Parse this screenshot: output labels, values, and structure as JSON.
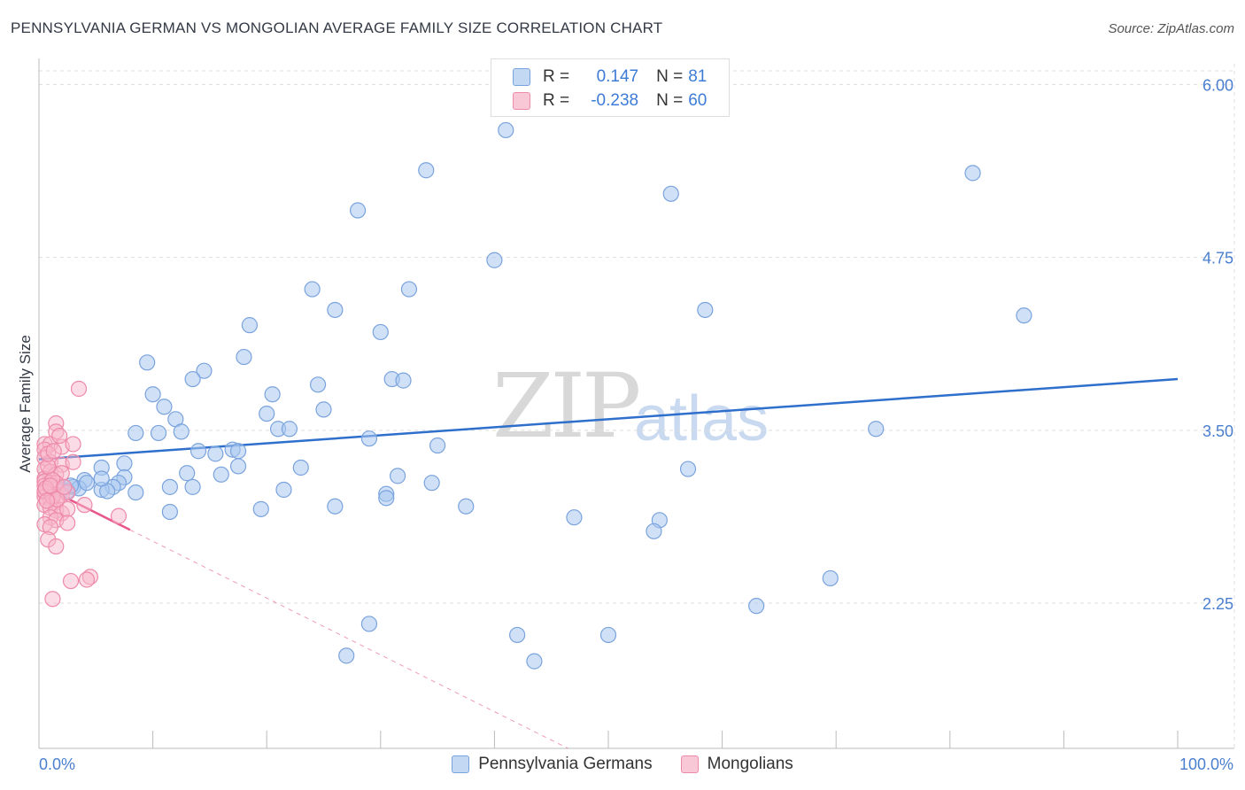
{
  "title": "PENNSYLVANIA GERMAN VS MONGOLIAN AVERAGE FAMILY SIZE CORRELATION CHART",
  "source": "Source: ZipAtlas.com",
  "watermark": {
    "zip": "ZIP",
    "atlas": "atlas"
  },
  "legend": {
    "series1": {
      "r_label": "R =",
      "r_value": "0.147",
      "n_label": "N =",
      "n_value": "81"
    },
    "series2": {
      "r_label": "R =",
      "r_value": "-0.238",
      "n_label": "N =",
      "n_value": "60"
    }
  },
  "bottom_legend": {
    "series1": "Pennsylvania Germans",
    "series2": "Mongolians"
  },
  "colors": {
    "blue_fill": "#a9c8f0",
    "blue_stroke": "#7aa3dd",
    "blue_line": "#2f6fcc",
    "pink_fill": "#f7b7cb",
    "pink_stroke": "#ee8aa9",
    "pink_line": "#e8578b",
    "grid": "#dddddd",
    "tick": "#4a7fcf"
  },
  "chart_data": {
    "type": "scatter",
    "title": "PENNSYLVANIA GERMAN VS MONGOLIAN AVERAGE FAMILY SIZE CORRELATION CHART",
    "xlabel": "",
    "ylabel": "Average Family Size",
    "xlim": [
      0,
      100
    ],
    "ylim": [
      1.2,
      6.15
    ],
    "x_tick_labels": [
      "0.0%",
      "100.0%"
    ],
    "y_ticks": [
      2.25,
      3.5,
      4.75,
      6.0
    ],
    "y_tick_labels": [
      "2.25",
      "3.50",
      "4.75",
      "6.00"
    ],
    "grid": true,
    "series": [
      {
        "name": "Pennsylvania Germans",
        "R": 0.147,
        "N": 81,
        "trend": {
          "x": [
            0,
            100
          ],
          "y": [
            3.29,
            3.87
          ]
        },
        "points": [
          [
            41.0,
            5.67
          ],
          [
            34.0,
            5.38
          ],
          [
            28.0,
            5.09
          ],
          [
            40.0,
            4.73
          ],
          [
            55.5,
            5.21
          ],
          [
            82.0,
            5.36
          ],
          [
            24.0,
            4.52
          ],
          [
            32.5,
            4.52
          ],
          [
            26.0,
            4.37
          ],
          [
            58.5,
            4.37
          ],
          [
            86.5,
            4.33
          ],
          [
            18.5,
            4.26
          ],
          [
            30.0,
            4.21
          ],
          [
            18.0,
            4.03
          ],
          [
            9.5,
            3.99
          ],
          [
            14.5,
            3.93
          ],
          [
            13.5,
            3.87
          ],
          [
            31.0,
            3.87
          ],
          [
            32.0,
            3.86
          ],
          [
            24.5,
            3.83
          ],
          [
            10.0,
            3.76
          ],
          [
            20.5,
            3.76
          ],
          [
            25.0,
            3.65
          ],
          [
            11.0,
            3.67
          ],
          [
            20.0,
            3.62
          ],
          [
            12.0,
            3.58
          ],
          [
            21.0,
            3.51
          ],
          [
            22.0,
            3.51
          ],
          [
            8.5,
            3.48
          ],
          [
            10.5,
            3.48
          ],
          [
            12.5,
            3.49
          ],
          [
            73.5,
            3.51
          ],
          [
            29.0,
            3.44
          ],
          [
            35.0,
            3.39
          ],
          [
            17.0,
            3.36
          ],
          [
            17.5,
            3.35
          ],
          [
            14.0,
            3.35
          ],
          [
            15.5,
            3.33
          ],
          [
            7.5,
            3.26
          ],
          [
            5.5,
            3.23
          ],
          [
            17.5,
            3.24
          ],
          [
            23.0,
            3.23
          ],
          [
            13.0,
            3.19
          ],
          [
            16.0,
            3.18
          ],
          [
            7.5,
            3.16
          ],
          [
            31.5,
            3.17
          ],
          [
            4.0,
            3.14
          ],
          [
            7.0,
            3.12
          ],
          [
            6.5,
            3.09
          ],
          [
            34.5,
            3.12
          ],
          [
            57.0,
            3.22
          ],
          [
            1.5,
            3.09
          ],
          [
            3.0,
            3.09
          ],
          [
            3.5,
            3.08
          ],
          [
            5.5,
            3.07
          ],
          [
            6.0,
            3.06
          ],
          [
            2.0,
            3.07
          ],
          [
            2.5,
            3.06
          ],
          [
            11.5,
            3.09
          ],
          [
            13.5,
            3.09
          ],
          [
            21.5,
            3.07
          ],
          [
            8.5,
            3.05
          ],
          [
            30.5,
            3.04
          ],
          [
            30.5,
            3.01
          ],
          [
            11.5,
            2.91
          ],
          [
            19.5,
            2.93
          ],
          [
            26.0,
            2.95
          ],
          [
            37.5,
            2.95
          ],
          [
            47.0,
            2.87
          ],
          [
            54.5,
            2.85
          ],
          [
            54.0,
            2.77
          ],
          [
            69.5,
            2.43
          ],
          [
            63.0,
            2.23
          ],
          [
            29.0,
            2.1
          ],
          [
            42.0,
            2.02
          ],
          [
            50.0,
            2.02
          ],
          [
            27.0,
            1.87
          ],
          [
            43.5,
            1.83
          ],
          [
            5.5,
            3.15
          ],
          [
            2.8,
            3.1
          ],
          [
            4.2,
            3.12
          ]
        ]
      },
      {
        "name": "Mongolians",
        "R": -0.238,
        "N": 60,
        "trend": {
          "x": [
            0,
            8
          ],
          "y": [
            3.11,
            2.78
          ]
        },
        "trend_dashed": {
          "x": [
            8,
            100
          ],
          "y": [
            2.78,
            -1.0
          ]
        },
        "points": [
          [
            3.5,
            3.8
          ],
          [
            1.5,
            3.55
          ],
          [
            1.5,
            3.49
          ],
          [
            0.5,
            3.4
          ],
          [
            1.0,
            3.4
          ],
          [
            2.0,
            3.38
          ],
          [
            0.5,
            3.36
          ],
          [
            0.5,
            3.3
          ],
          [
            1.0,
            3.27
          ],
          [
            2.0,
            3.25
          ],
          [
            0.5,
            3.22
          ],
          [
            1.0,
            3.2
          ],
          [
            1.5,
            3.18
          ],
          [
            0.5,
            3.15
          ],
          [
            0.5,
            3.13
          ],
          [
            1.0,
            3.12
          ],
          [
            0.5,
            3.1
          ],
          [
            1.0,
            3.08
          ],
          [
            1.5,
            3.07
          ],
          [
            0.5,
            3.05
          ],
          [
            1.0,
            3.04
          ],
          [
            0.5,
            3.02
          ],
          [
            1.0,
            3.0
          ],
          [
            1.5,
            2.98
          ],
          [
            0.5,
            2.96
          ],
          [
            1.0,
            2.94
          ],
          [
            1.5,
            2.92
          ],
          [
            2.0,
            2.9
          ],
          [
            1.0,
            2.87
          ],
          [
            1.5,
            2.85
          ],
          [
            0.5,
            2.82
          ],
          [
            1.0,
            2.8
          ],
          [
            2.5,
            2.93
          ],
          [
            4.0,
            2.96
          ],
          [
            7.0,
            2.88
          ],
          [
            2.0,
            3.03
          ],
          [
            2.5,
            3.05
          ],
          [
            3.0,
            3.4
          ],
          [
            3.0,
            3.27
          ],
          [
            2.0,
            3.19
          ],
          [
            1.5,
            3.12
          ],
          [
            0.8,
            3.24
          ],
          [
            1.2,
            3.14
          ],
          [
            0.8,
            3.33
          ],
          [
            1.8,
            3.46
          ],
          [
            4.5,
            2.44
          ],
          [
            4.2,
            2.42
          ],
          [
            2.8,
            2.41
          ],
          [
            1.2,
            2.28
          ],
          [
            0.8,
            2.71
          ],
          [
            1.5,
            2.66
          ],
          [
            2.5,
            2.83
          ],
          [
            0.5,
            3.06
          ],
          [
            1.2,
            3.02
          ],
          [
            0.6,
            3.08
          ],
          [
            1.0,
            3.1
          ],
          [
            1.6,
            3.0
          ],
          [
            0.7,
            2.99
          ],
          [
            2.2,
            3.09
          ],
          [
            1.3,
            3.35
          ]
        ]
      }
    ]
  }
}
